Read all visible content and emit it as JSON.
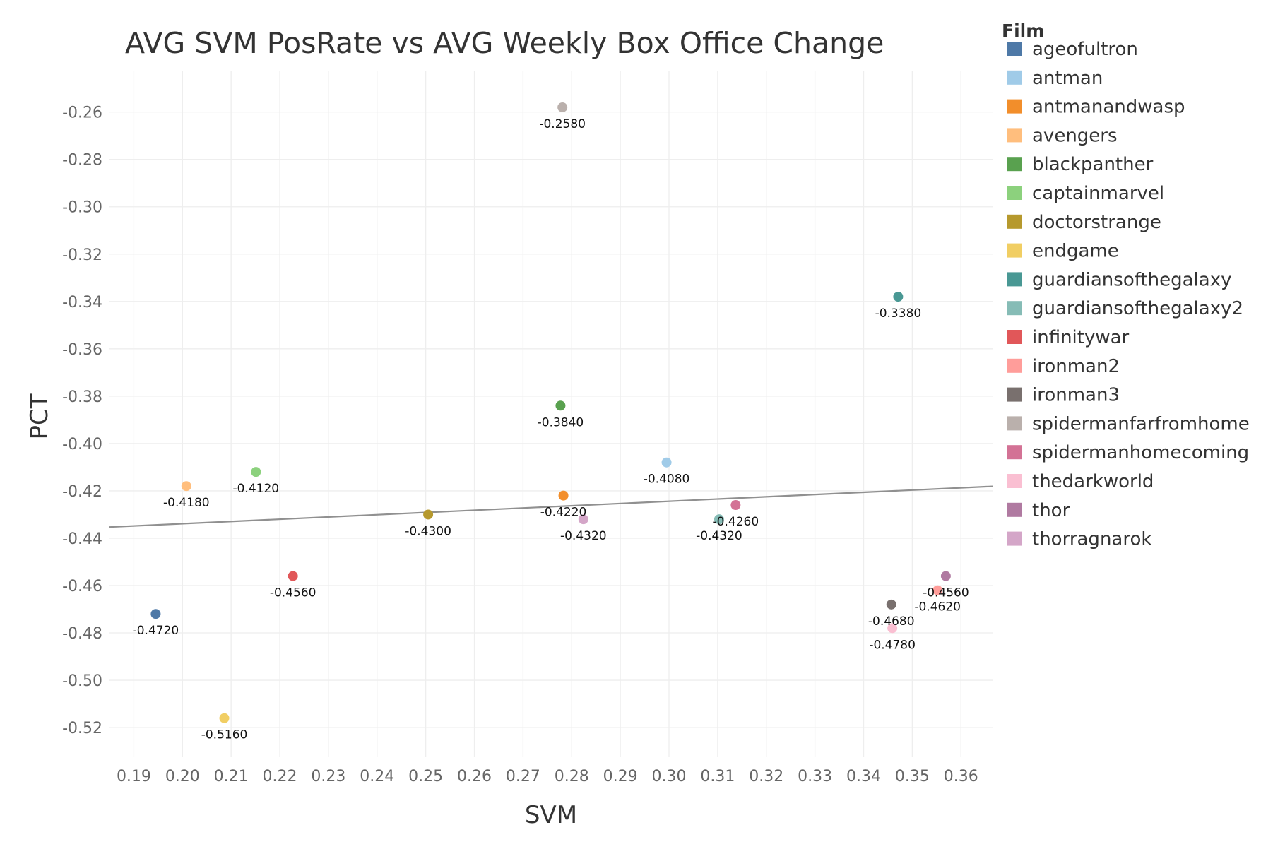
{
  "chart_data": {
    "type": "scatter",
    "title": "AVG SVM PosRate vs AVG Weekly Box Office Change",
    "xlabel": "SVM",
    "ylabel": "PCT",
    "xlim": [
      0.185,
      0.3665
    ],
    "ylim": [
      -0.5325,
      -0.2425
    ],
    "x_ticks": [
      "0.19",
      "0.20",
      "0.21",
      "0.22",
      "0.23",
      "0.24",
      "0.25",
      "0.26",
      "0.27",
      "0.28",
      "0.29",
      "0.30",
      "0.31",
      "0.32",
      "0.33",
      "0.34",
      "0.35",
      "0.36"
    ],
    "x_tick_values": [
      0.19,
      0.2,
      0.21,
      0.22,
      0.23,
      0.24,
      0.25,
      0.26,
      0.27,
      0.28,
      0.29,
      0.3,
      0.31,
      0.32,
      0.33,
      0.34,
      0.35,
      0.36
    ],
    "y_ticks": [
      "-0.26",
      "-0.28",
      "-0.30",
      "-0.32",
      "-0.34",
      "-0.36",
      "-0.38",
      "-0.40",
      "-0.42",
      "-0.44",
      "-0.46",
      "-0.48",
      "-0.50",
      "-0.52"
    ],
    "y_tick_values": [
      -0.26,
      -0.28,
      -0.3,
      -0.32,
      -0.34,
      -0.36,
      -0.38,
      -0.4,
      -0.42,
      -0.44,
      -0.46,
      -0.48,
      -0.5,
      -0.52
    ],
    "grid": true,
    "legend_title": "Film",
    "legend_position": "right",
    "trend_line": {
      "x": [
        0.185,
        0.3665
      ],
      "y": [
        -0.4353,
        -0.4181
      ]
    },
    "series": [
      {
        "name": "ageofultron",
        "color": "#4e79a7",
        "x": 0.1945,
        "y": -0.472,
        "label": "-0.4720"
      },
      {
        "name": "antman",
        "color": "#a0cbe8",
        "x": 0.2995,
        "y": -0.408,
        "label": "-0.4080"
      },
      {
        "name": "antmanandwasp",
        "color": "#f28e2b",
        "x": 0.2783,
        "y": -0.422,
        "label": "-0.4220"
      },
      {
        "name": "avengers",
        "color": "#ffbe7d",
        "x": 0.2008,
        "y": -0.418,
        "label": "-0.4180"
      },
      {
        "name": "blackpanther",
        "color": "#59a14f",
        "x": 0.2777,
        "y": -0.384,
        "label": "-0.3840"
      },
      {
        "name": "captainmarvel",
        "color": "#8cd17d",
        "x": 0.2151,
        "y": -0.412,
        "label": "-0.4120"
      },
      {
        "name": "doctorstrange",
        "color": "#b6992d",
        "x": 0.2505,
        "y": -0.43,
        "label": "-0.4300"
      },
      {
        "name": "endgame",
        "color": "#f1ce63",
        "x": 0.2086,
        "y": -0.516,
        "label": "-0.5160"
      },
      {
        "name": "guardiansofthegalaxy",
        "color": "#499894",
        "x": 0.3471,
        "y": -0.338,
        "label": "-0.3380"
      },
      {
        "name": "guardiansofthegalaxy2",
        "color": "#86bcb6",
        "x": 0.3103,
        "y": -0.432,
        "label": "-0.4320"
      },
      {
        "name": "infinitywar",
        "color": "#e15759",
        "x": 0.2227,
        "y": -0.456,
        "label": "-0.4560"
      },
      {
        "name": "ironman2",
        "color": "#ff9d9a",
        "x": 0.3552,
        "y": -0.462,
        "label": "-0.4620"
      },
      {
        "name": "ironman3",
        "color": "#79706e",
        "x": 0.3457,
        "y": -0.468,
        "label": "-0.4680"
      },
      {
        "name": "spidermanfarfromhome",
        "color": "#bab0ac",
        "x": 0.2781,
        "y": -0.258,
        "label": "-0.2580"
      },
      {
        "name": "spidermanhomecoming",
        "color": "#d37295",
        "x": 0.3137,
        "y": -0.426,
        "label": "-0.4260"
      },
      {
        "name": "thedarkworld",
        "color": "#fabfd2",
        "x": 0.3459,
        "y": -0.478,
        "label": "-0.4780"
      },
      {
        "name": "thor",
        "color": "#b07aa1",
        "x": 0.3569,
        "y": -0.456,
        "label": "-0.4560"
      },
      {
        "name": "thorragnarok",
        "color": "#d4a6c8",
        "x": 0.2824,
        "y": -0.432,
        "label": "-0.4320"
      }
    ]
  }
}
